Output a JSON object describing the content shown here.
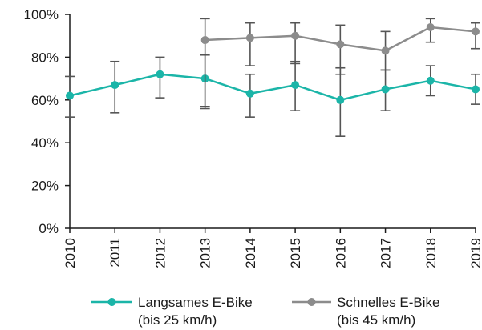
{
  "chart_data": {
    "type": "line",
    "categories": [
      "2010",
      "2011",
      "2012",
      "2013",
      "2014",
      "2015",
      "2016",
      "2017",
      "2018",
      "2019"
    ],
    "ylim": [
      0,
      100
    ],
    "yticks": [
      "0%",
      "20%",
      "40%",
      "60%",
      "80%",
      "100%"
    ],
    "ytick_values": [
      0,
      20,
      40,
      60,
      80,
      100
    ],
    "grid": false,
    "legend_position": "bottom",
    "series": [
      {
        "name": "Langsames E-Bike",
        "name_line2": "(bis 25 km/h)",
        "color": "#1bb5a8",
        "values": [
          62,
          67,
          72,
          70,
          63,
          67,
          60,
          65,
          69,
          65
        ],
        "err_low": [
          52,
          54,
          61,
          57,
          52,
          55,
          43,
          55,
          62,
          58
        ],
        "err_high": [
          71,
          78,
          80,
          81,
          72,
          78,
          75,
          74,
          76,
          72
        ]
      },
      {
        "name": "Schnelles E-Bike",
        "name_line2": "(bis 45 km/h)",
        "color": "#8c8c8c",
        "values": [
          null,
          null,
          null,
          88,
          89,
          90,
          86,
          83,
          94,
          92
        ],
        "err_low": [
          null,
          null,
          null,
          56,
          76,
          77,
          72,
          74,
          87,
          84
        ],
        "err_high": [
          null,
          null,
          null,
          98,
          96,
          96,
          95,
          92,
          98,
          96
        ]
      }
    ]
  }
}
